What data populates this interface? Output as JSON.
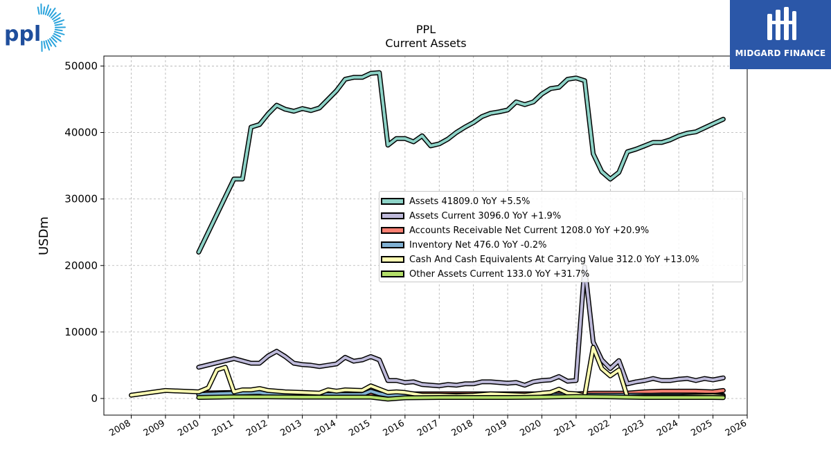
{
  "brand": {
    "company_logo_text": "ppl",
    "watermark_text": "MIDGARD FINANCE",
    "watermark_color": "#2b57a8"
  },
  "chart_data": {
    "type": "line",
    "title": "PPL",
    "subtitle": "Current  Assets",
    "ylabel": "USDm",
    "xlabel": "",
    "xlim": [
      2007.2,
      2026.0
    ],
    "ylim": [
      -2500,
      51500
    ],
    "yticks": [
      0,
      10000,
      20000,
      30000,
      40000,
      50000
    ],
    "xticks": [
      "2008",
      "2009",
      "2010",
      "2011",
      "2012",
      "2013",
      "2014",
      "2015",
      "2016",
      "2017",
      "2018",
      "2019",
      "2020",
      "2021",
      "2022",
      "2023",
      "2024",
      "2025",
      "2026"
    ],
    "grid": true,
    "legend_position": "center-right",
    "series": [
      {
        "name": "Assets",
        "legend_label": "Assets  41809.0 YoY +5.5%",
        "color": "#8dd3c7",
        "points": [
          [
            2009.97,
            22000
          ],
          [
            2011.0,
            33000
          ],
          [
            2011.25,
            33000
          ],
          [
            2011.5,
            40800
          ],
          [
            2011.75,
            41200
          ],
          [
            2012.0,
            42800
          ],
          [
            2012.25,
            44100
          ],
          [
            2012.5,
            43500
          ],
          [
            2012.75,
            43200
          ],
          [
            2013.0,
            43600
          ],
          [
            2013.25,
            43300
          ],
          [
            2013.5,
            43700
          ],
          [
            2013.75,
            45000
          ],
          [
            2014.0,
            46300
          ],
          [
            2014.25,
            48000
          ],
          [
            2014.5,
            48300
          ],
          [
            2014.75,
            48300
          ],
          [
            2015.0,
            48900
          ],
          [
            2015.25,
            49000
          ],
          [
            2015.5,
            38100
          ],
          [
            2015.75,
            39100
          ],
          [
            2016.0,
            39100
          ],
          [
            2016.25,
            38600
          ],
          [
            2016.5,
            39500
          ],
          [
            2016.75,
            38000
          ],
          [
            2017.0,
            38300
          ],
          [
            2017.25,
            39000
          ],
          [
            2017.5,
            40000
          ],
          [
            2017.75,
            40800
          ],
          [
            2018.0,
            41500
          ],
          [
            2018.25,
            42400
          ],
          [
            2018.5,
            42900
          ],
          [
            2018.75,
            43100
          ],
          [
            2019.0,
            43400
          ],
          [
            2019.25,
            44600
          ],
          [
            2019.5,
            44200
          ],
          [
            2019.75,
            44600
          ],
          [
            2020.0,
            45800
          ],
          [
            2020.25,
            46600
          ],
          [
            2020.5,
            46800
          ],
          [
            2020.75,
            48000
          ],
          [
            2021.0,
            48200
          ],
          [
            2021.25,
            47800
          ],
          [
            2021.5,
            36800
          ],
          [
            2021.75,
            34100
          ],
          [
            2022.0,
            33000
          ],
          [
            2022.25,
            34000
          ],
          [
            2022.5,
            37100
          ],
          [
            2022.75,
            37500
          ],
          [
            2023.0,
            38000
          ],
          [
            2023.25,
            38500
          ],
          [
            2023.5,
            38500
          ],
          [
            2023.75,
            38900
          ],
          [
            2024.0,
            39500
          ],
          [
            2024.25,
            39900
          ],
          [
            2024.5,
            40100
          ],
          [
            2024.75,
            40700
          ],
          [
            2025.0,
            41300
          ],
          [
            2025.3,
            42000
          ]
        ]
      },
      {
        "name": "Assets Current",
        "legend_label": "Assets Current  3096.0 YoY +1.9%",
        "color": "#bebada",
        "points": [
          [
            2009.97,
            4700
          ],
          [
            2011.0,
            6000
          ],
          [
            2011.5,
            5300
          ],
          [
            2011.75,
            5300
          ],
          [
            2012.0,
            6400
          ],
          [
            2012.25,
            7100
          ],
          [
            2012.5,
            6300
          ],
          [
            2012.75,
            5300
          ],
          [
            2013.0,
            5100
          ],
          [
            2013.25,
            5000
          ],
          [
            2013.5,
            4800
          ],
          [
            2013.75,
            5000
          ],
          [
            2014.0,
            5200
          ],
          [
            2014.25,
            6200
          ],
          [
            2014.5,
            5600
          ],
          [
            2014.75,
            5800
          ],
          [
            2015.0,
            6300
          ],
          [
            2015.25,
            5800
          ],
          [
            2015.5,
            2700
          ],
          [
            2015.75,
            2700
          ],
          [
            2016.0,
            2400
          ],
          [
            2016.25,
            2500
          ],
          [
            2016.5,
            2100
          ],
          [
            2016.75,
            2000
          ],
          [
            2017.0,
            1900
          ],
          [
            2017.25,
            2100
          ],
          [
            2017.5,
            2000
          ],
          [
            2017.75,
            2200
          ],
          [
            2018.0,
            2200
          ],
          [
            2018.25,
            2500
          ],
          [
            2018.5,
            2500
          ],
          [
            2018.75,
            2400
          ],
          [
            2019.0,
            2300
          ],
          [
            2019.25,
            2400
          ],
          [
            2019.5,
            2000
          ],
          [
            2019.75,
            2500
          ],
          [
            2020.0,
            2700
          ],
          [
            2020.25,
            2800
          ],
          [
            2020.5,
            3300
          ],
          [
            2020.75,
            2600
          ],
          [
            2021.0,
            2700
          ],
          [
            2021.25,
            19800
          ],
          [
            2021.5,
            8500
          ],
          [
            2021.75,
            5800
          ],
          [
            2022.0,
            4500
          ],
          [
            2022.25,
            5700
          ],
          [
            2022.5,
            2200
          ],
          [
            2022.75,
            2500
          ],
          [
            2023.0,
            2700
          ],
          [
            2023.25,
            3000
          ],
          [
            2023.5,
            2700
          ],
          [
            2023.75,
            2700
          ],
          [
            2024.0,
            2900
          ],
          [
            2024.25,
            3000
          ],
          [
            2024.5,
            2700
          ],
          [
            2024.75,
            3000
          ],
          [
            2025.0,
            2800
          ],
          [
            2025.3,
            3100
          ]
        ]
      },
      {
        "name": "Accounts Receivable Net Current",
        "legend_label": "Accounts Receivable Net Current  1208.0 YoY +20.9%",
        "color": "#fb8072",
        "points": [
          [
            2009.97,
            800
          ],
          [
            2011.0,
            900
          ],
          [
            2012.0,
            800
          ],
          [
            2013.0,
            700
          ],
          [
            2014.0,
            700
          ],
          [
            2015.0,
            800
          ],
          [
            2015.5,
            700
          ],
          [
            2016.0,
            700
          ],
          [
            2017.0,
            700
          ],
          [
            2018.0,
            700
          ],
          [
            2019.0,
            700
          ],
          [
            2020.0,
            700
          ],
          [
            2021.0,
            700
          ],
          [
            2021.5,
            800
          ],
          [
            2022.0,
            800
          ],
          [
            2022.5,
            800
          ],
          [
            2023.0,
            1000
          ],
          [
            2023.5,
            1100
          ],
          [
            2024.0,
            1100
          ],
          [
            2024.5,
            1100
          ],
          [
            2025.0,
            1000
          ],
          [
            2025.3,
            1200
          ]
        ]
      },
      {
        "name": "Inventory Net",
        "legend_label": "Inventory Net  476.0 YoY -0.2%",
        "color": "#80b1d3",
        "points": [
          [
            2009.97,
            600
          ],
          [
            2011.0,
            800
          ],
          [
            2011.75,
            900
          ],
          [
            2012.0,
            700
          ],
          [
            2013.0,
            600
          ],
          [
            2014.0,
            600
          ],
          [
            2014.75,
            600
          ],
          [
            2015.0,
            1100
          ],
          [
            2015.25,
            700
          ],
          [
            2015.5,
            500
          ],
          [
            2016.0,
            500
          ],
          [
            2017.0,
            500
          ],
          [
            2018.0,
            500
          ],
          [
            2019.0,
            500
          ],
          [
            2020.0,
            500
          ],
          [
            2021.0,
            500
          ],
          [
            2022.0,
            500
          ],
          [
            2023.0,
            500
          ],
          [
            2024.0,
            500
          ],
          [
            2025.0,
            500
          ],
          [
            2025.3,
            480
          ]
        ]
      },
      {
        "name": "Cash And Cash Equivalents At Carrying Value",
        "legend_label": "Cash And Cash Equivalents At Carrying Value  312.0 YoY +13.0%",
        "color": "#ffffb3",
        "points": [
          [
            2008.0,
            500
          ],
          [
            2009.0,
            1200
          ],
          [
            2009.97,
            1000
          ],
          [
            2010.25,
            1600
          ],
          [
            2010.5,
            4300
          ],
          [
            2010.75,
            4700
          ],
          [
            2011.0,
            1000
          ],
          [
            2011.25,
            1300
          ],
          [
            2011.5,
            1300
          ],
          [
            2011.75,
            1500
          ],
          [
            2012.0,
            1200
          ],
          [
            2012.5,
            1000
          ],
          [
            2013.0,
            900
          ],
          [
            2013.5,
            800
          ],
          [
            2013.75,
            1300
          ],
          [
            2014.0,
            1100
          ],
          [
            2014.25,
            1300
          ],
          [
            2014.75,
            1200
          ],
          [
            2015.0,
            1900
          ],
          [
            2015.25,
            1400
          ],
          [
            2015.5,
            900
          ],
          [
            2015.75,
            1000
          ],
          [
            2016.0,
            900
          ],
          [
            2016.5,
            500
          ],
          [
            2017.0,
            500
          ],
          [
            2017.5,
            400
          ],
          [
            2018.0,
            500
          ],
          [
            2018.5,
            700
          ],
          [
            2019.0,
            600
          ],
          [
            2019.5,
            500
          ],
          [
            2020.0,
            800
          ],
          [
            2020.25,
            900
          ],
          [
            2020.5,
            1400
          ],
          [
            2020.75,
            800
          ],
          [
            2021.0,
            700
          ],
          [
            2021.25,
            400
          ],
          [
            2021.5,
            7700
          ],
          [
            2021.75,
            4500
          ],
          [
            2022.0,
            3400
          ],
          [
            2022.25,
            4300
          ],
          [
            2022.5,
            200
          ],
          [
            2023.0,
            300
          ],
          [
            2024.0,
            300
          ],
          [
            2025.0,
            400
          ],
          [
            2025.3,
            300
          ]
        ]
      },
      {
        "name": "Other Assets Current",
        "legend_label": "Other Assets Current  133.0 YoY +31.7%",
        "color": "#b3de69",
        "points": [
          [
            2009.97,
            150
          ],
          [
            2011.0,
            250
          ],
          [
            2012.0,
            250
          ],
          [
            2013.0,
            200
          ],
          [
            2014.0,
            200
          ],
          [
            2015.0,
            200
          ],
          [
            2015.5,
            -100
          ],
          [
            2016.0,
            100
          ],
          [
            2017.0,
            150
          ],
          [
            2018.0,
            150
          ],
          [
            2019.0,
            150
          ],
          [
            2020.0,
            200
          ],
          [
            2021.0,
            300
          ],
          [
            2022.0,
            250
          ],
          [
            2023.0,
            150
          ],
          [
            2024.0,
            150
          ],
          [
            2025.0,
            150
          ],
          [
            2025.3,
            130
          ]
        ]
      }
    ]
  }
}
